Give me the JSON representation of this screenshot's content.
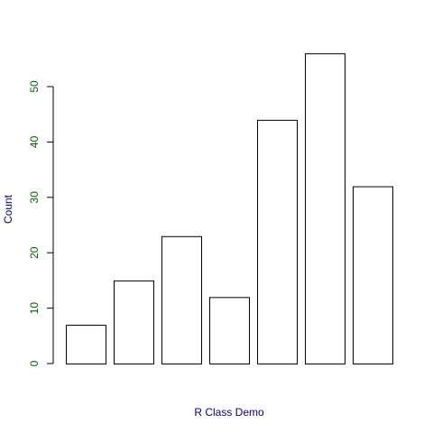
{
  "chart_data": {
    "type": "bar",
    "values": [
      7,
      15,
      23,
      12,
      44,
      56,
      32
    ],
    "xlabel": "R Class Demo",
    "ylabel": "Count",
    "yticks": [
      0,
      10,
      20,
      30,
      40,
      50
    ],
    "ylim": [
      0,
      56
    ],
    "grid": false,
    "bar_fill": "#ffffff",
    "bar_stroke": "#000000",
    "axis_label_color": "#00008b",
    "tick_label_color": "#006400"
  }
}
